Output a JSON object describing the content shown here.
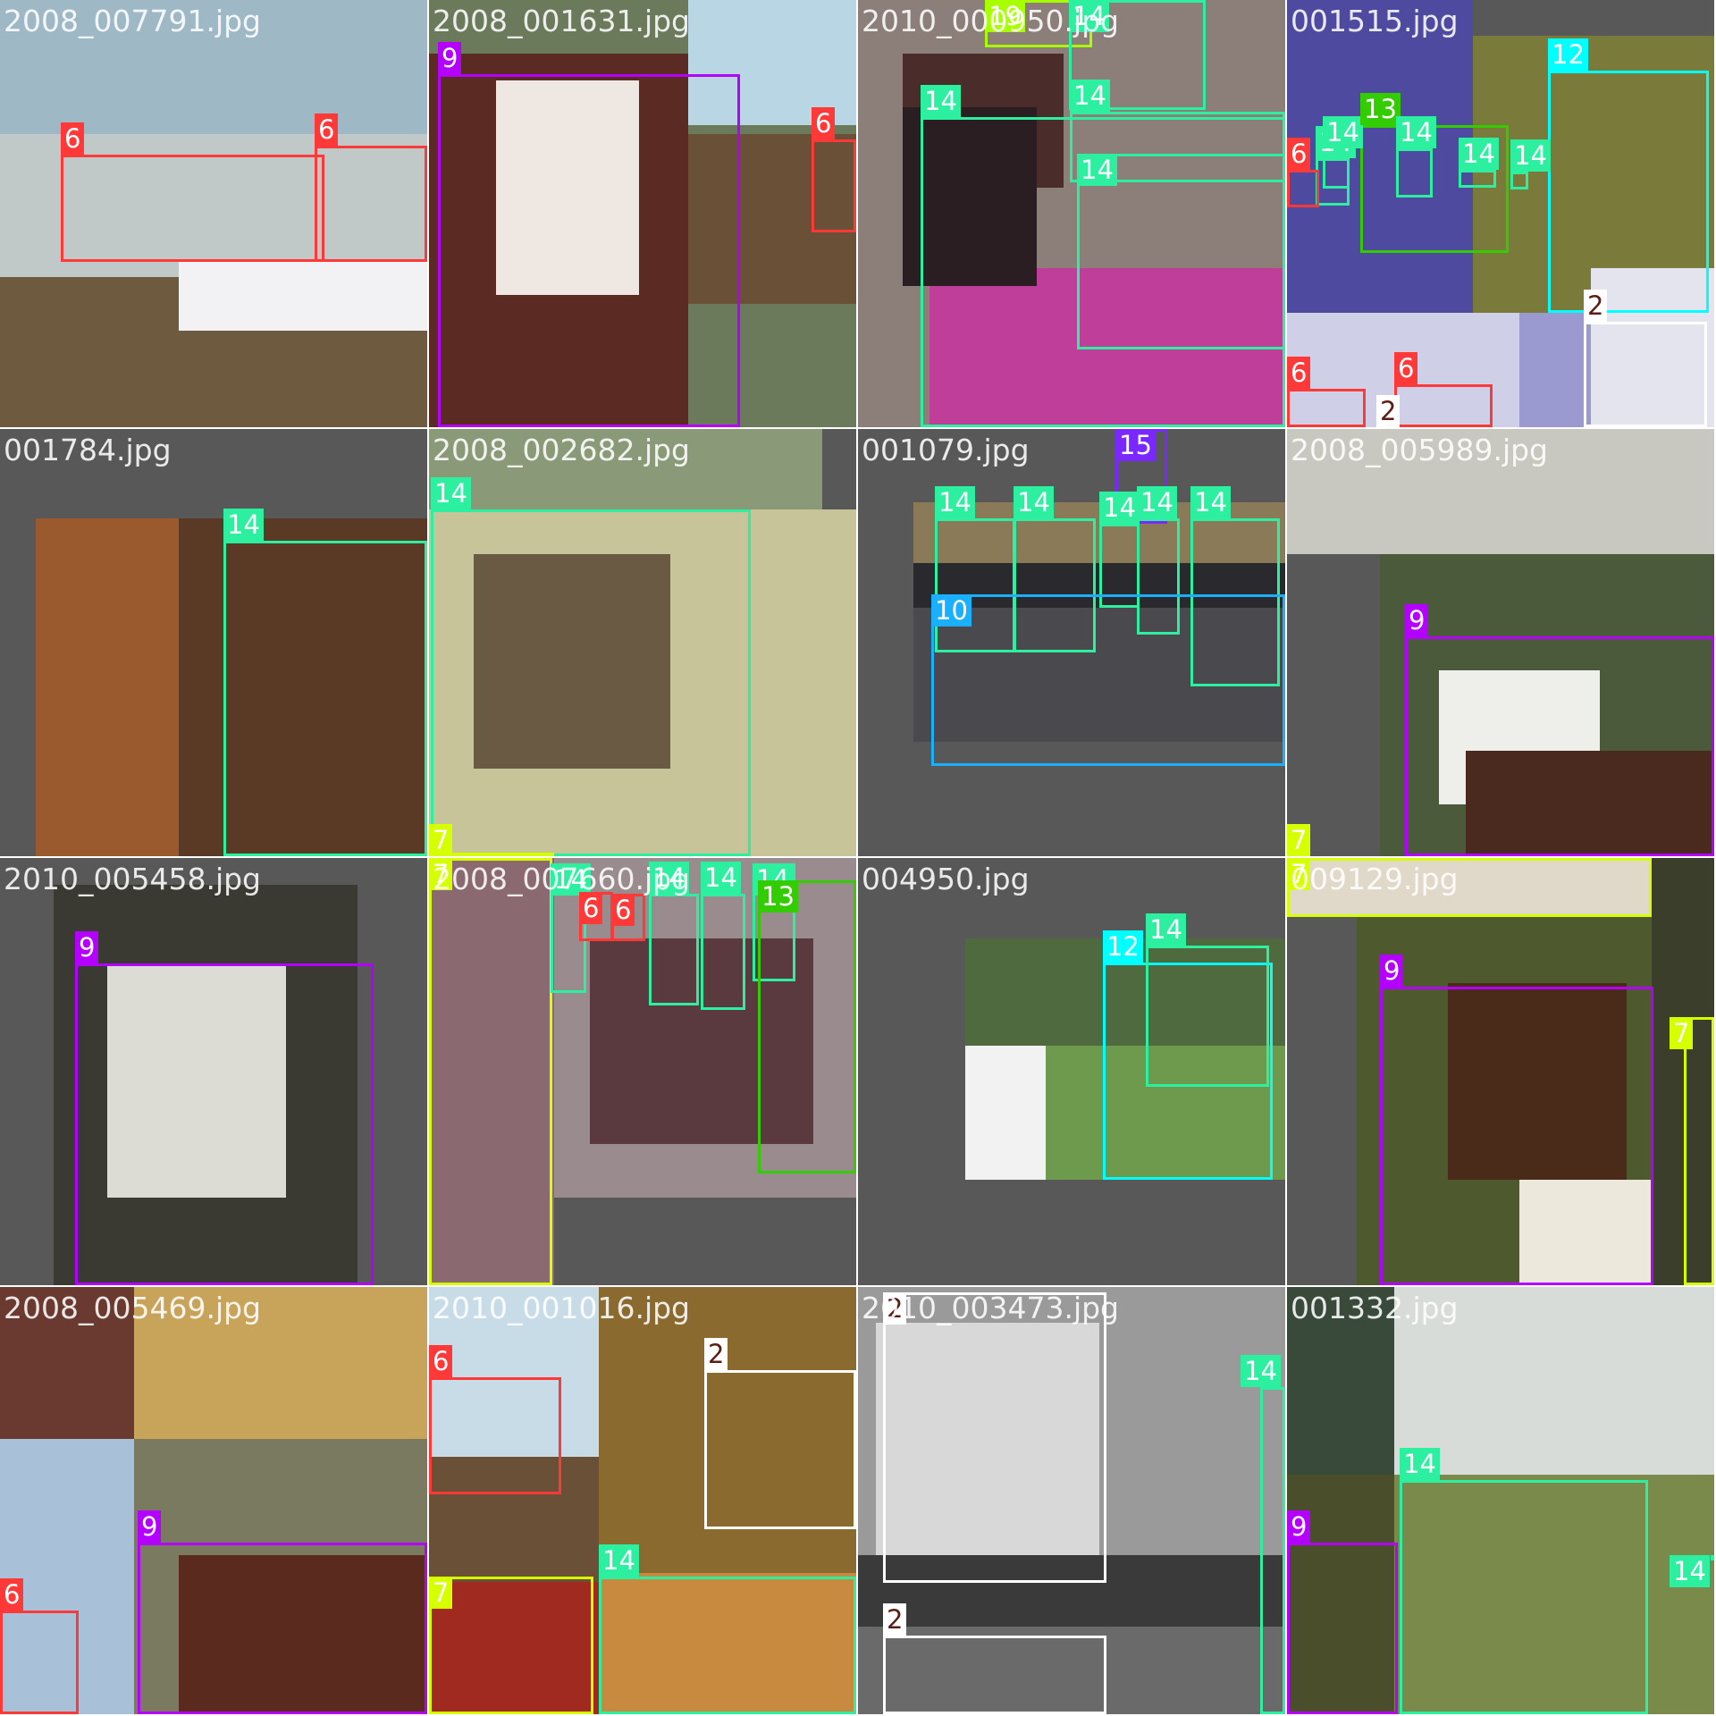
{
  "class_colors": {
    "2": "#ffffff",
    "6": "#ff3838",
    "7": "#d6ff00",
    "9": "#b400ff",
    "10": "#1ab0ff",
    "12": "#00ffff",
    "13": "#33cc00",
    "14": "#2cf0a0",
    "15": "#7a28ff",
    "19": "#a8ff00"
  },
  "tiles": [
    {
      "filename": "2008_007791.jpg",
      "regions": [
        {
          "color": "#9fb8c6"
        },
        {
          "color": "#c0c8c8"
        },
        {
          "color": "#6e5a3e"
        },
        {
          "color": "#f2f2f4"
        }
      ],
      "detections": [
        {
          "label": "6"
        },
        {
          "label": "6"
        }
      ]
    },
    {
      "filename": "2008_001631.jpg",
      "regions": [
        {
          "color": "#6a7a5a"
        },
        {
          "color": "#5b2a22"
        },
        {
          "color": "#efe8e2"
        },
        {
          "color": "#b9d6e4"
        },
        {
          "color": "#6a5036"
        }
      ],
      "detections": [
        {
          "label": "9"
        },
        {
          "label": "6"
        }
      ]
    },
    {
      "filename": "2010_000950.jpg",
      "regions": [
        {
          "color": "#8c7e78"
        },
        {
          "color": "#4a2c2a"
        },
        {
          "color": "#bf3e9a"
        },
        {
          "color": "#2a1e22"
        }
      ],
      "detections": [
        {
          "label": "19"
        },
        {
          "label": "14"
        },
        {
          "label": "14"
        },
        {
          "label": "14"
        },
        {
          "label": "14"
        }
      ]
    },
    {
      "filename": "001515.jpg",
      "regions": [
        {
          "color": "#4e4aa0"
        },
        {
          "color": "#7a7a3a"
        },
        {
          "color": "#cfcfe8"
        },
        {
          "color": "#9a9ad0"
        },
        {
          "color": "#e4e4ee"
        }
      ],
      "detections": [
        {
          "label": "12"
        },
        {
          "label": "14"
        },
        {
          "label": "14"
        },
        {
          "label": "13"
        },
        {
          "label": "14"
        },
        {
          "label": "14"
        },
        {
          "label": "14"
        },
        {
          "label": "6"
        },
        {
          "label": "6"
        },
        {
          "label": "6"
        },
        {
          "label": "2"
        },
        {
          "label": "2"
        }
      ]
    },
    {
      "filename": "001784.jpg",
      "regions": [
        {
          "color": "#9a5a2e"
        },
        {
          "color": "#5a3a24"
        }
      ],
      "detections": [
        {
          "label": "14"
        }
      ]
    },
    {
      "filename": "2008_002682.jpg",
      "regions": [
        {
          "color": "#8a9a78"
        },
        {
          "color": "#c8c49a"
        },
        {
          "color": "#6a5a44"
        }
      ],
      "detections": [
        {
          "label": "14"
        },
        {
          "label": "7"
        }
      ]
    },
    {
      "filename": "001079.jpg",
      "regions": [
        {
          "color": "#8a7a58"
        },
        {
          "color": "#2a2a2e"
        },
        {
          "color": "#4a4a4e"
        }
      ],
      "detections": [
        {
          "label": "15"
        },
        {
          "label": "14"
        },
        {
          "label": "14"
        },
        {
          "label": "14"
        },
        {
          "label": "14"
        },
        {
          "label": "14"
        },
        {
          "label": "10"
        }
      ]
    },
    {
      "filename": "2008_005989.jpg",
      "regions": [
        {
          "color": "#c8c8c0"
        },
        {
          "color": "#4a5a3a"
        },
        {
          "color": "#eeeeea"
        },
        {
          "color": "#4a2a1e"
        }
      ],
      "detections": [
        {
          "label": "9"
        },
        {
          "label": "7"
        }
      ]
    },
    {
      "filename": "2010_005458.jpg",
      "regions": [
        {
          "color": "#3a3a32"
        },
        {
          "color": "#dcdcd4"
        }
      ],
      "detections": [
        {
          "label": "9"
        }
      ]
    },
    {
      "filename": "2008_007660.jpg",
      "regions": [
        {
          "color": "#8a6a70"
        },
        {
          "color": "#9a8c8e"
        },
        {
          "color": "#5a3a3e"
        }
      ],
      "detections": [
        {
          "label": "7"
        },
        {
          "label": "14"
        },
        {
          "label": "6"
        },
        {
          "label": "6"
        },
        {
          "label": "14"
        },
        {
          "label": "14"
        },
        {
          "label": "14"
        },
        {
          "label": "13"
        }
      ]
    },
    {
      "filename": "004950.jpg",
      "regions": [
        {
          "color": "#4e6a3e"
        },
        {
          "color": "#6e9a4e"
        },
        {
          "color": "#f2f2f2"
        }
      ],
      "detections": [
        {
          "label": "12"
        },
        {
          "label": "14"
        }
      ]
    },
    {
      "filename": "009129.jpg",
      "regions": [
        {
          "color": "#e0d8c8"
        },
        {
          "color": "#4e5a2e"
        },
        {
          "color": "#4a2a18"
        },
        {
          "color": "#ece8dc"
        },
        {
          "color": "#3a3e2a"
        }
      ],
      "detections": [
        {
          "label": "7"
        },
        {
          "label": "9"
        },
        {
          "label": "7"
        }
      ]
    },
    {
      "filename": "2008_005469.jpg",
      "regions": [
        {
          "color": "#6a3a30"
        },
        {
          "color": "#c8a45a"
        },
        {
          "color": "#a8c0d8"
        },
        {
          "color": "#7a7a60"
        },
        {
          "color": "#5a2a1e"
        }
      ],
      "detections": [
        {
          "label": "9"
        },
        {
          "label": "6"
        }
      ]
    },
    {
      "filename": "2010_001016.jpg",
      "regions": [
        {
          "color": "#c8dce8"
        },
        {
          "color": "#6a5036"
        },
        {
          "color": "#8a6a2e"
        },
        {
          "color": "#a02a20"
        },
        {
          "color": "#c88a3e"
        }
      ],
      "detections": [
        {
          "label": "6"
        },
        {
          "label": "2"
        },
        {
          "label": "14"
        },
        {
          "label": "7"
        }
      ]
    },
    {
      "filename": "2010_003473.jpg",
      "regions": [
        {
          "color": "#9a9a9a"
        },
        {
          "color": "#d8d8d8"
        },
        {
          "color": "#3a3a3a"
        },
        {
          "color": "#6a6a6a"
        }
      ],
      "detections": [
        {
          "label": "2"
        },
        {
          "label": "14"
        },
        {
          "label": "2"
        }
      ]
    },
    {
      "filename": "001332.jpg",
      "regions": [
        {
          "color": "#3a4a3a"
        },
        {
          "color": "#d8dcd8"
        },
        {
          "color": "#4a4e2a"
        },
        {
          "color": "#7a8a4a"
        }
      ],
      "detections": [
        {
          "label": "14"
        },
        {
          "label": "9"
        },
        {
          "label": "14"
        }
      ]
    }
  ]
}
